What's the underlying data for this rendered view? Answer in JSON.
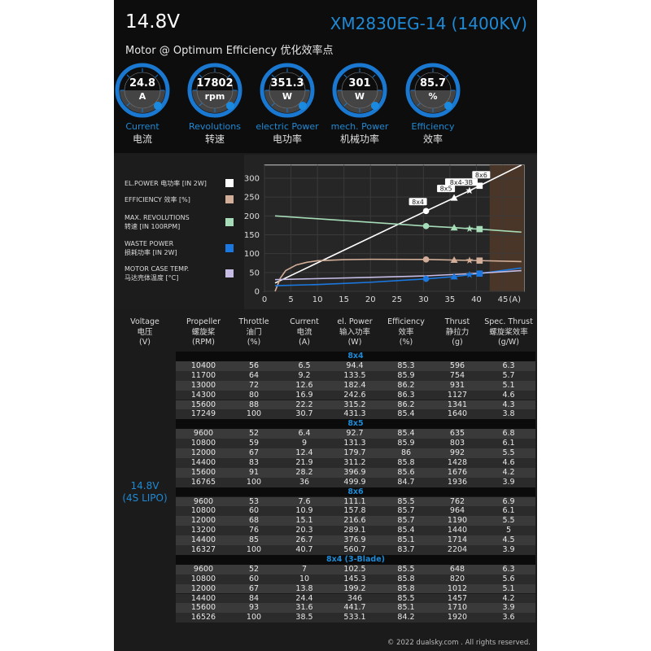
{
  "header": {
    "voltage": "14.8V",
    "model": "XM2830EG-14 (1400KV)",
    "subtitle": "Motor @ Optimum Efficiency  优化效率点"
  },
  "gauges": [
    {
      "value": "24.8",
      "unit": "A",
      "label": "Current",
      "label_cn": "电流"
    },
    {
      "value": "17802",
      "unit": "rpm",
      "label": "Revolutions",
      "label_cn": "转速"
    },
    {
      "value": "351.3",
      "unit": "W",
      "label": "electric Power",
      "label_cn": "电功率"
    },
    {
      "value": "301",
      "unit": "W",
      "label": "mech. Power",
      "label_cn": "机械功率"
    },
    {
      "value": "85.7",
      "unit": "%",
      "label": "Efficiency",
      "label_cn": "效率"
    }
  ],
  "legend": [
    {
      "l1": "EL.POWER 电功率 [IN 2W]",
      "l2": "",
      "color": "#ffffff"
    },
    {
      "l1": "EFFICIENCY 效率 [%]",
      "l2": "",
      "color": "#d2ae98"
    },
    {
      "l1": "MAX. REVOLUTIONS",
      "l2": "转速 [IN 100RPM]",
      "color": "#a6dcb8"
    },
    {
      "l1": "WASTE POWER",
      "l2": "损耗功率 [IN 2W]",
      "color": "#1a78e0"
    },
    {
      "l1": "MOTOR CASE TEMP.",
      "l2": "马达壳体温度 [°C]",
      "color": "#c6bce6"
    }
  ],
  "chart_data": {
    "type": "line",
    "xlabel": "(A)",
    "xlim": [
      0,
      49
    ],
    "ylim": [
      0,
      335
    ],
    "xticks": [
      0,
      5,
      10,
      15,
      20,
      25,
      30,
      35,
      40,
      45
    ],
    "yticks": [
      0,
      50,
      100,
      150,
      200,
      250,
      300
    ],
    "grid": true,
    "shaded_region_from_x": 42.5,
    "series": [
      {
        "name": "EL.POWER 电功率 [IN 2W]",
        "color": "#ffffff",
        "x": [
          2,
          30.5,
          35.8,
          38.7,
          40.6,
          48.5
        ],
        "y": [
          22,
          213,
          248,
          267,
          280,
          335
        ]
      },
      {
        "name": "EFFICIENCY 效率 [%]",
        "color": "#d2ae98",
        "x": [
          2,
          3,
          4,
          6,
          8,
          10,
          15,
          20,
          30.5,
          35.8,
          38.7,
          40.6,
          48.5
        ],
        "y": [
          0,
          35,
          55,
          70,
          77,
          81,
          84,
          85,
          84.5,
          83,
          82,
          81.5,
          79
        ]
      },
      {
        "name": "MAX. REVOLUTIONS 转速 [IN 100RPM]",
        "color": "#a6dcb8",
        "x": [
          2,
          30.5,
          35.8,
          38.7,
          40.6,
          48.5
        ],
        "y": [
          200,
          173,
          169,
          166,
          165,
          157
        ]
      },
      {
        "name": "WASTE POWER 损耗功率 [IN 2W]",
        "color": "#1a78e0",
        "x": [
          2,
          10,
          20,
          30.5,
          35.8,
          38.7,
          40.6,
          48.5
        ],
        "y": [
          15,
          18,
          24,
          33,
          39,
          44,
          47,
          62
        ]
      },
      {
        "name": "MOTOR CASE TEMP. 马达壳体温度 [°C]",
        "color": "#c6bce6",
        "x": [
          2,
          20,
          30.5,
          40.6,
          48.5
        ],
        "y": [
          31,
          37,
          41,
          48,
          55
        ]
      }
    ],
    "markers": [
      {
        "label": "8x4",
        "shape": "circle",
        "x": 30.5,
        "el_power": 213,
        "revolutions": 173,
        "efficiency": 84.5,
        "waste": 33
      },
      {
        "label": "8x5",
        "shape": "triangle",
        "x": 35.8,
        "el_power": 248,
        "revolutions": 169,
        "efficiency": 83,
        "waste": 39
      },
      {
        "label": "8x4-3B",
        "shape": "star",
        "x": 38.7,
        "el_power": 267,
        "revolutions": 166,
        "efficiency": 82,
        "waste": 44
      },
      {
        "label": "8x6",
        "shape": "square",
        "x": 40.6,
        "el_power": 280,
        "revolutions": 165,
        "efficiency": 81.5,
        "waste": 47
      }
    ]
  },
  "table": {
    "headers": [
      [
        "Voltage",
        "电压",
        "(V)"
      ],
      [
        "Propeller",
        "螺旋桨",
        "(RPM)"
      ],
      [
        "Throttle",
        "油门",
        "(%)"
      ],
      [
        "Current",
        "电流",
        "(A)"
      ],
      [
        "el. Power",
        "输入功率",
        "(W)"
      ],
      [
        "Efficiency",
        "效率",
        "(%)"
      ],
      [
        "Thrust",
        "静拉力",
        "(g)"
      ],
      [
        "Spec. Thrust",
        "螺旋桨效率",
        "(g/W)"
      ]
    ],
    "voltage": "14.8V",
    "battery": "(4S LIPO)",
    "groups": [
      {
        "prop": "8x4",
        "rows": [
          [
            "10400",
            "56",
            "6.5",
            "94.4",
            "85.3",
            "596",
            "6.3"
          ],
          [
            "11700",
            "64",
            "9.2",
            "133.5",
            "85.9",
            "754",
            "5.7"
          ],
          [
            "13000",
            "72",
            "12.6",
            "182.4",
            "86.2",
            "931",
            "5.1"
          ],
          [
            "14300",
            "80",
            "16.9",
            "242.6",
            "86.3",
            "1127",
            "4.6"
          ],
          [
            "15600",
            "88",
            "22.2",
            "315.2",
            "86.2",
            "1341",
            "4.3"
          ],
          [
            "17249",
            "100",
            "30.7",
            "431.3",
            "85.4",
            "1640",
            "3.8"
          ]
        ]
      },
      {
        "prop": "8x5",
        "rows": [
          [
            "9600",
            "52",
            "6.4",
            "92.7",
            "85.4",
            "635",
            "6.8"
          ],
          [
            "10800",
            "59",
            "9",
            "131.3",
            "85.9",
            "803",
            "6.1"
          ],
          [
            "12000",
            "67",
            "12.4",
            "179.7",
            "86",
            "992",
            "5.5"
          ],
          [
            "14400",
            "83",
            "21.9",
            "311.2",
            "85.8",
            "1428",
            "4.6"
          ],
          [
            "15600",
            "91",
            "28.2",
            "396.9",
            "85.6",
            "1676",
            "4.2"
          ],
          [
            "16765",
            "100",
            "36",
            "499.9",
            "84.7",
            "1936",
            "3.9"
          ]
        ]
      },
      {
        "prop": "8x6",
        "rows": [
          [
            "9600",
            "53",
            "7.6",
            "111.1",
            "85.5",
            "762",
            "6.9"
          ],
          [
            "10800",
            "60",
            "10.9",
            "157.8",
            "85.7",
            "964",
            "6.1"
          ],
          [
            "12000",
            "68",
            "15.1",
            "216.6",
            "85.7",
            "1190",
            "5.5"
          ],
          [
            "13200",
            "76",
            "20.3",
            "289.1",
            "85.4",
            "1440",
            "5"
          ],
          [
            "14400",
            "85",
            "26.7",
            "376.9",
            "85.1",
            "1714",
            "4.5"
          ],
          [
            "16327",
            "100",
            "40.7",
            "560.7",
            "83.7",
            "2204",
            "3.9"
          ]
        ]
      },
      {
        "prop": "8x4 (3-Blade)",
        "rows": [
          [
            "9600",
            "52",
            "7",
            "102.5",
            "85.5",
            "648",
            "6.3"
          ],
          [
            "10800",
            "60",
            "10",
            "145.3",
            "85.8",
            "820",
            "5.6"
          ],
          [
            "12000",
            "67",
            "13.8",
            "199.2",
            "85.8",
            "1012",
            "5.1"
          ],
          [
            "14400",
            "84",
            "24.4",
            "346",
            "85.5",
            "1457",
            "4.2"
          ],
          [
            "15600",
            "93",
            "31.6",
            "441.7",
            "85.1",
            "1710",
            "3.9"
          ],
          [
            "16526",
            "100",
            "38.5",
            "533.1",
            "84.2",
            "1920",
            "3.6"
          ]
        ]
      }
    ]
  },
  "footer": "© 2022 dualsky.com . All rights reserved."
}
